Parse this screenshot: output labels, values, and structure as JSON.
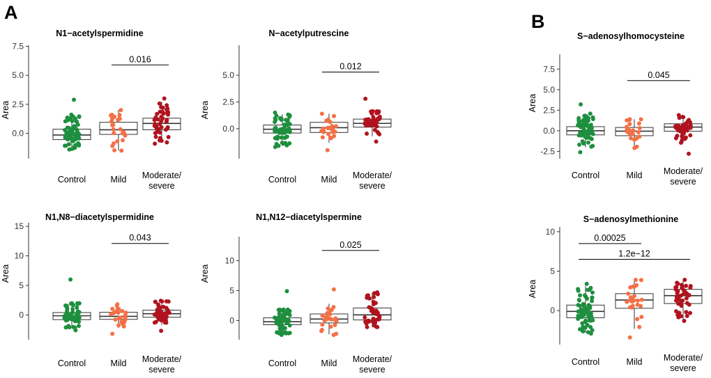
{
  "panels": [
    {
      "letter": "A"
    },
    {
      "letter": "B"
    }
  ],
  "colors": {
    "Control": "#1e8f3e",
    "Mild": "#f47046",
    "Moderate/severe": "#b0131e",
    "box_fill": "#ffffff",
    "box_line": "#333333"
  },
  "chart_data": [
    {
      "type": "box",
      "title": "N1−acetylspermidine",
      "ylabel": "Area",
      "categories": [
        "Control",
        "Mild",
        "Moderate/ severe"
      ],
      "category_lines": [
        [
          "Control"
        ],
        [
          "Mild"
        ],
        [
          "Moderate/",
          "severe"
        ]
      ],
      "ylim": [
        -2.2,
        7.6
      ],
      "yticks": [
        0.0,
        2.5,
        5.0,
        7.5
      ],
      "ytick_labels": [
        "0.0",
        "2.5",
        "5.0",
        "7.5"
      ],
      "boxes": [
        {
          "category": "Control",
          "q1": -0.55,
          "median": -0.15,
          "q3": 0.35,
          "whisker_low": -1.4,
          "whisker_high": 1.6,
          "n": 70,
          "min": -1.4,
          "max": 2.9
        },
        {
          "category": "Mild",
          "q1": -0.1,
          "median": 0.3,
          "q3": 0.95,
          "whisker_low": -1.5,
          "whisker_high": 2.0,
          "n": 25,
          "min": -1.5,
          "max": 2.0
        },
        {
          "category": "Moderate/ severe",
          "q1": 0.3,
          "median": 0.85,
          "q3": 1.3,
          "whisker_low": -0.8,
          "whisker_high": 2.7,
          "n": 45,
          "min": -0.9,
          "max": 3.0
        }
      ],
      "comparisons": [
        {
          "groups": [
            "Mild",
            "Moderate/ severe"
          ],
          "p_label": "0.016",
          "y": 5.9
        }
      ]
    },
    {
      "type": "box",
      "title": "N−acetylputrescine",
      "ylabel": "Area",
      "categories": [
        "Control",
        "Mild",
        "Moderate/ severe"
      ],
      "category_lines": [
        [
          "Control"
        ],
        [
          "Mild"
        ],
        [
          "Moderate/",
          "severe"
        ]
      ],
      "ylim": [
        -2.8,
        7.8
      ],
      "yticks": [
        0.0,
        2.5,
        5.0
      ],
      "ytick_labels": [
        "0.0",
        "2.5",
        "5.0"
      ],
      "boxes": [
        {
          "category": "Control",
          "q1": -0.4,
          "median": -0.05,
          "q3": 0.35,
          "whisker_low": -1.6,
          "whisker_high": 1.35,
          "n": 70,
          "min": -1.7,
          "max": 1.5
        },
        {
          "category": "Mild",
          "q1": -0.35,
          "median": 0.1,
          "q3": 0.6,
          "whisker_low": -1.3,
          "whisker_high": 1.4,
          "n": 25,
          "min": -2.0,
          "max": 1.4
        },
        {
          "category": "Moderate/ severe",
          "q1": 0.15,
          "median": 0.5,
          "q3": 0.9,
          "whisker_low": -0.7,
          "whisker_high": 1.75,
          "n": 45,
          "min": -1.2,
          "max": 2.8
        }
      ],
      "comparisons": [
        {
          "groups": [
            "Mild",
            "Moderate/ severe"
          ],
          "p_label": "0.012",
          "y": 5.3
        }
      ]
    },
    {
      "type": "box",
      "title": "N1,N8−diacetylspermidine",
      "ylabel": "Area",
      "categories": [
        "Control",
        "Mild",
        "Moderate/ severe"
      ],
      "category_lines": [
        [
          "Control"
        ],
        [
          "Mild"
        ],
        [
          "Moderate/",
          "severe"
        ]
      ],
      "ylim": [
        -4.2,
        15.6
      ],
      "yticks": [
        0,
        5,
        10,
        15
      ],
      "ytick_labels": [
        "0",
        "5",
        "10",
        "15"
      ],
      "boxes": [
        {
          "category": "Control",
          "q1": -0.8,
          "median": -0.15,
          "q3": 0.4,
          "whisker_low": -2.2,
          "whisker_high": 2.0,
          "n": 70,
          "min": -2.6,
          "max": 6.0
        },
        {
          "category": "Mild",
          "q1": -0.75,
          "median": -0.25,
          "q3": 0.45,
          "whisker_low": -2.2,
          "whisker_high": 1.7,
          "n": 25,
          "min": -3.2,
          "max": 1.8
        },
        {
          "category": "Moderate/ severe",
          "q1": -0.4,
          "median": 0.2,
          "q3": 0.8,
          "whisker_low": -1.7,
          "whisker_high": 2.3,
          "n": 45,
          "min": -2.7,
          "max": 2.4
        }
      ],
      "comparisons": [
        {
          "groups": [
            "Mild",
            "Moderate/ severe"
          ],
          "p_label": "0.043",
          "y": 12.1
        }
      ]
    },
    {
      "type": "box",
      "title": "N1,N12−diacetylspermine",
      "ylabel": "Area",
      "categories": [
        "Control",
        "Mild",
        "Moderate/ severe"
      ],
      "category_lines": [
        [
          "Control"
        ],
        [
          "Mild"
        ],
        [
          "Moderate/",
          "severe"
        ]
      ],
      "ylim": [
        -3.2,
        14.0
      ],
      "yticks": [
        0,
        5,
        10
      ],
      "ytick_labels": [
        "0",
        "5",
        "10"
      ],
      "boxes": [
        {
          "category": "Control",
          "q1": -0.7,
          "median": -0.2,
          "q3": 0.45,
          "whisker_low": -2.3,
          "whisker_high": 1.9,
          "n": 70,
          "min": -2.4,
          "max": 4.9
        },
        {
          "category": "Mild",
          "q1": -0.4,
          "median": 0.25,
          "q3": 1.1,
          "whisker_low": -2.3,
          "whisker_high": 2.8,
          "n": 25,
          "min": -2.4,
          "max": 5.2
        },
        {
          "category": "Moderate/ severe",
          "q1": 0.1,
          "median": 0.95,
          "q3": 2.1,
          "whisker_low": -1.1,
          "whisker_high": 4.6,
          "n": 45,
          "min": -1.1,
          "max": 4.7
        }
      ],
      "comparisons": [
        {
          "groups": [
            "Mild",
            "Moderate/ severe"
          ],
          "p_label": "0.025",
          "y": 11.7
        }
      ]
    },
    {
      "type": "box",
      "title": "S−adenosylhomocysteine",
      "ylabel": "Area",
      "categories": [
        "Control",
        "Mild",
        "Moderate/ severe"
      ],
      "category_lines": [
        [
          "Control"
        ],
        [
          "Mild"
        ],
        [
          "Moderate/",
          "severe"
        ]
      ],
      "ylim": [
        -3.4,
        9.3
      ],
      "yticks": [
        -2.5,
        0.0,
        2.5,
        5.0,
        7.5
      ],
      "ytick_labels": [
        "-2.5",
        "0.0",
        "2.5",
        "5.0",
        "7.5"
      ],
      "boxes": [
        {
          "category": "Control",
          "q1": -0.5,
          "median": 0.0,
          "q3": 0.5,
          "whisker_low": -2.0,
          "whisker_high": 2.1,
          "n": 70,
          "min": -2.6,
          "max": 3.2
        },
        {
          "category": "Mild",
          "q1": -0.6,
          "median": -0.05,
          "q3": 0.4,
          "whisker_low": -2.0,
          "whisker_high": 1.4,
          "n": 25,
          "min": -2.1,
          "max": 1.4
        },
        {
          "category": "Moderate/ severe",
          "q1": -0.05,
          "median": 0.45,
          "q3": 0.85,
          "whisker_low": -1.5,
          "whisker_high": 1.9,
          "n": 45,
          "min": -2.8,
          "max": 1.9
        }
      ],
      "comparisons": [
        {
          "groups": [
            "Mild",
            "Moderate/ severe"
          ],
          "p_label": "0.045",
          "y": 6.1
        }
      ]
    },
    {
      "type": "box",
      "title": "S−adenosylmethionine",
      "ylabel": "Area",
      "categories": [
        "Control",
        "Mild",
        "Moderate/ severe"
      ],
      "category_lines": [
        [
          "Control"
        ],
        [
          "Mild"
        ],
        [
          "Moderate/",
          "severe"
        ]
      ],
      "ylim": [
        -4.3,
        10.6
      ],
      "yticks": [
        0,
        5,
        10
      ],
      "ytick_labels": [
        "0",
        "5",
        "10"
      ],
      "boxes": [
        {
          "category": "Control",
          "q1": -0.9,
          "median": -0.1,
          "q3": 0.7,
          "whisker_low": -2.8,
          "whisker_high": 3.1,
          "n": 70,
          "min": -2.9,
          "max": 3.4
        },
        {
          "category": "Mild",
          "q1": 0.3,
          "median": 1.35,
          "q3": 2.15,
          "whisker_low": -2.3,
          "whisker_high": 3.9,
          "n": 25,
          "min": -3.4,
          "max": 3.9
        },
        {
          "category": "Moderate/ severe",
          "q1": 0.9,
          "median": 1.9,
          "q3": 2.7,
          "whisker_low": -1.1,
          "whisker_high": 3.85,
          "n": 45,
          "min": -1.3,
          "max": 3.9
        }
      ],
      "comparisons": [
        {
          "groups": [
            "Control",
            "Mild"
          ],
          "p_label": "0.00025",
          "y": 8.5
        },
        {
          "groups": [
            "Control",
            "Moderate/ severe"
          ],
          "p_label": "1.2e−12",
          "y": 6.5
        }
      ]
    }
  ]
}
